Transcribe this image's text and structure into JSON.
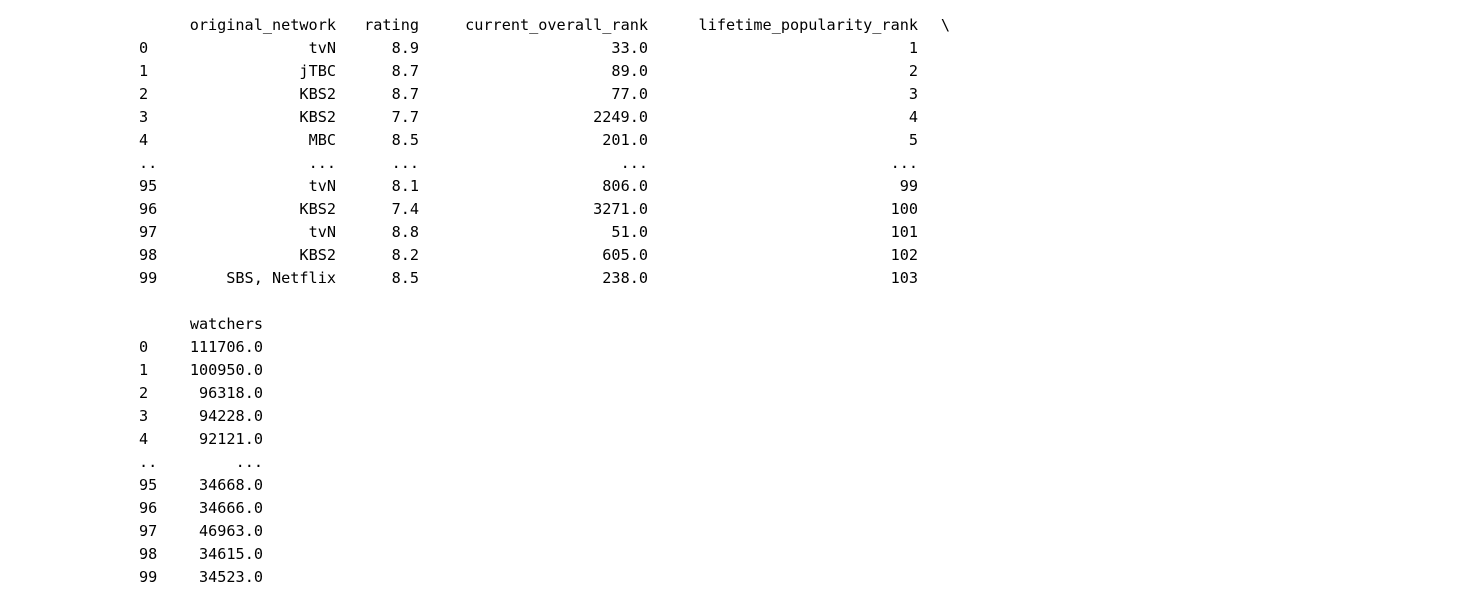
{
  "table1": {
    "columns": [
      "original_network",
      "rating",
      "current_overall_rank",
      "lifetime_popularity_rank"
    ],
    "continuation": "\\",
    "rows": [
      {
        "idx": "0",
        "original_network": "tvN",
        "rating": "8.9",
        "current_overall_rank": "33.0",
        "lifetime_popularity_rank": "1"
      },
      {
        "idx": "1",
        "original_network": "jTBC",
        "rating": "8.7",
        "current_overall_rank": "89.0",
        "lifetime_popularity_rank": "2"
      },
      {
        "idx": "2",
        "original_network": "KBS2",
        "rating": "8.7",
        "current_overall_rank": "77.0",
        "lifetime_popularity_rank": "3"
      },
      {
        "idx": "3",
        "original_network": "KBS2",
        "rating": "7.7",
        "current_overall_rank": "2249.0",
        "lifetime_popularity_rank": "4"
      },
      {
        "idx": "4",
        "original_network": "MBC",
        "rating": "8.5",
        "current_overall_rank": "201.0",
        "lifetime_popularity_rank": "5"
      },
      {
        "idx": "..",
        "original_network": "...",
        "rating": "...",
        "current_overall_rank": "...",
        "lifetime_popularity_rank": "..."
      },
      {
        "idx": "95",
        "original_network": "tvN",
        "rating": "8.1",
        "current_overall_rank": "806.0",
        "lifetime_popularity_rank": "99"
      },
      {
        "idx": "96",
        "original_network": "KBS2",
        "rating": "7.4",
        "current_overall_rank": "3271.0",
        "lifetime_popularity_rank": "100"
      },
      {
        "idx": "97",
        "original_network": "tvN",
        "rating": "8.8",
        "current_overall_rank": "51.0",
        "lifetime_popularity_rank": "101"
      },
      {
        "idx": "98",
        "original_network": "KBS2",
        "rating": "8.2",
        "current_overall_rank": "605.0",
        "lifetime_popularity_rank": "102"
      },
      {
        "idx": "99",
        "original_network": "SBS, Netflix",
        "rating": "8.5",
        "current_overall_rank": "238.0",
        "lifetime_popularity_rank": "103"
      }
    ]
  },
  "table2": {
    "columns": [
      "watchers"
    ],
    "rows": [
      {
        "idx": "0",
        "watchers": "111706.0"
      },
      {
        "idx": "1",
        "watchers": "100950.0"
      },
      {
        "idx": "2",
        "watchers": "96318.0"
      },
      {
        "idx": "3",
        "watchers": "94228.0"
      },
      {
        "idx": "4",
        "watchers": "92121.0"
      },
      {
        "idx": "..",
        "watchers": "..."
      },
      {
        "idx": "95",
        "watchers": "34668.0"
      },
      {
        "idx": "96",
        "watchers": "34666.0"
      },
      {
        "idx": "97",
        "watchers": "46963.0"
      },
      {
        "idx": "98",
        "watchers": "34615.0"
      },
      {
        "idx": "99",
        "watchers": "34523.0"
      }
    ]
  }
}
